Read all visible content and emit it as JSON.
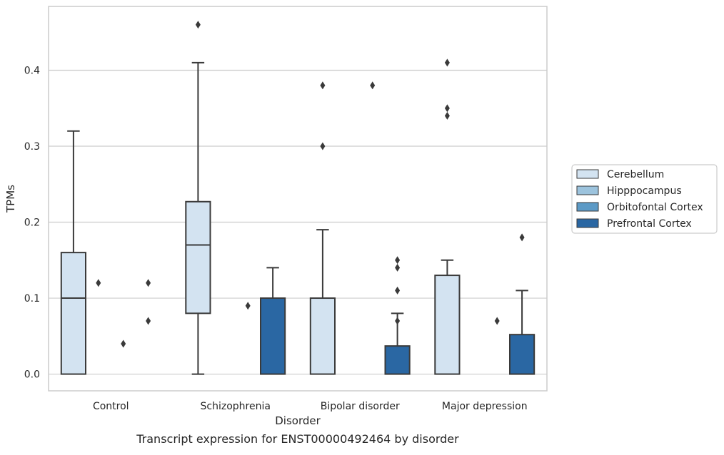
{
  "caption": "Transcript expression for ENST00000492464 by disorder",
  "chart_data": {
    "type": "box",
    "xlabel": "Disorder",
    "ylabel": "TPMs",
    "ylim": [
      -0.022,
      0.484
    ],
    "yticks": [
      0.0,
      0.1,
      0.2,
      0.3,
      0.4
    ],
    "ytick_labels": [
      "0.0",
      "0.1",
      "0.2",
      "0.3",
      "0.4"
    ],
    "grid": "horizontal",
    "categories": [
      "Control",
      "Schizophrenia",
      "Bipolar disorder",
      "Major depression"
    ],
    "legend_position": "right",
    "series": [
      {
        "name": "Cerebellum",
        "color": "#d3e3f1",
        "boxes": [
          {
            "q1": 0.0,
            "median": 0.1,
            "q3": 0.16,
            "whisker_low": 0.0,
            "whisker_high": 0.32,
            "outliers": []
          },
          {
            "q1": 0.08,
            "median": 0.17,
            "q3": 0.227,
            "whisker_low": 0.0,
            "whisker_high": 0.41,
            "outliers": [
              0.46
            ]
          },
          {
            "q1": 0.0,
            "median": 0.0,
            "q3": 0.1,
            "whisker_low": 0.0,
            "whisker_high": 0.19,
            "outliers": [
              0.3,
              0.38
            ]
          },
          {
            "q1": 0.0,
            "median": 0.0,
            "q3": 0.13,
            "whisker_low": 0.0,
            "whisker_high": 0.15,
            "outliers": [
              0.34,
              0.35,
              0.41
            ]
          }
        ]
      },
      {
        "name": "Hipppocampus",
        "color": "#9cc3dd",
        "boxes": [
          {
            "q1": 0.0,
            "median": 0.0,
            "q3": 0.0,
            "whisker_low": 0.0,
            "whisker_high": 0.0,
            "outliers": [
              0.12
            ]
          },
          {
            "q1": 0.0,
            "median": 0.0,
            "q3": 0.0,
            "whisker_low": 0.0,
            "whisker_high": 0.0,
            "outliers": []
          },
          {
            "q1": 0.0,
            "median": 0.0,
            "q3": 0.0,
            "whisker_low": 0.0,
            "whisker_high": 0.0,
            "outliers": []
          },
          {
            "q1": 0.0,
            "median": 0.0,
            "q3": 0.0,
            "whisker_low": 0.0,
            "whisker_high": 0.0,
            "outliers": []
          }
        ]
      },
      {
        "name": "Orbitofontal Cortex",
        "color": "#5c9ac6",
        "boxes": [
          {
            "q1": 0.0,
            "median": 0.0,
            "q3": 0.0,
            "whisker_low": 0.0,
            "whisker_high": 0.0,
            "outliers": [
              0.04
            ]
          },
          {
            "q1": 0.0,
            "median": 0.0,
            "q3": 0.0,
            "whisker_low": 0.0,
            "whisker_high": 0.0,
            "outliers": [
              0.09
            ]
          },
          {
            "q1": 0.0,
            "median": 0.0,
            "q3": 0.0,
            "whisker_low": 0.0,
            "whisker_high": 0.0,
            "outliers": [
              0.38
            ]
          },
          {
            "q1": 0.0,
            "median": 0.0,
            "q3": 0.0,
            "whisker_low": 0.0,
            "whisker_high": 0.0,
            "outliers": [
              0.07
            ]
          }
        ]
      },
      {
        "name": "Prefrontal Cortex",
        "color": "#2a67a3",
        "boxes": [
          {
            "q1": 0.0,
            "median": 0.0,
            "q3": 0.0,
            "whisker_low": 0.0,
            "whisker_high": 0.0,
            "outliers": [
              0.07,
              0.12
            ]
          },
          {
            "q1": 0.0,
            "median": 0.0,
            "q3": 0.1,
            "whisker_low": 0.0,
            "whisker_high": 0.14,
            "outliers": []
          },
          {
            "q1": 0.0,
            "median": 0.0,
            "q3": 0.037,
            "whisker_low": 0.0,
            "whisker_high": 0.08,
            "outliers": [
              0.07,
              0.11,
              0.14,
              0.15
            ]
          },
          {
            "q1": 0.0,
            "median": 0.0,
            "q3": 0.052,
            "whisker_low": 0.0,
            "whisker_high": 0.11,
            "outliers": [
              0.18
            ]
          }
        ]
      }
    ]
  }
}
